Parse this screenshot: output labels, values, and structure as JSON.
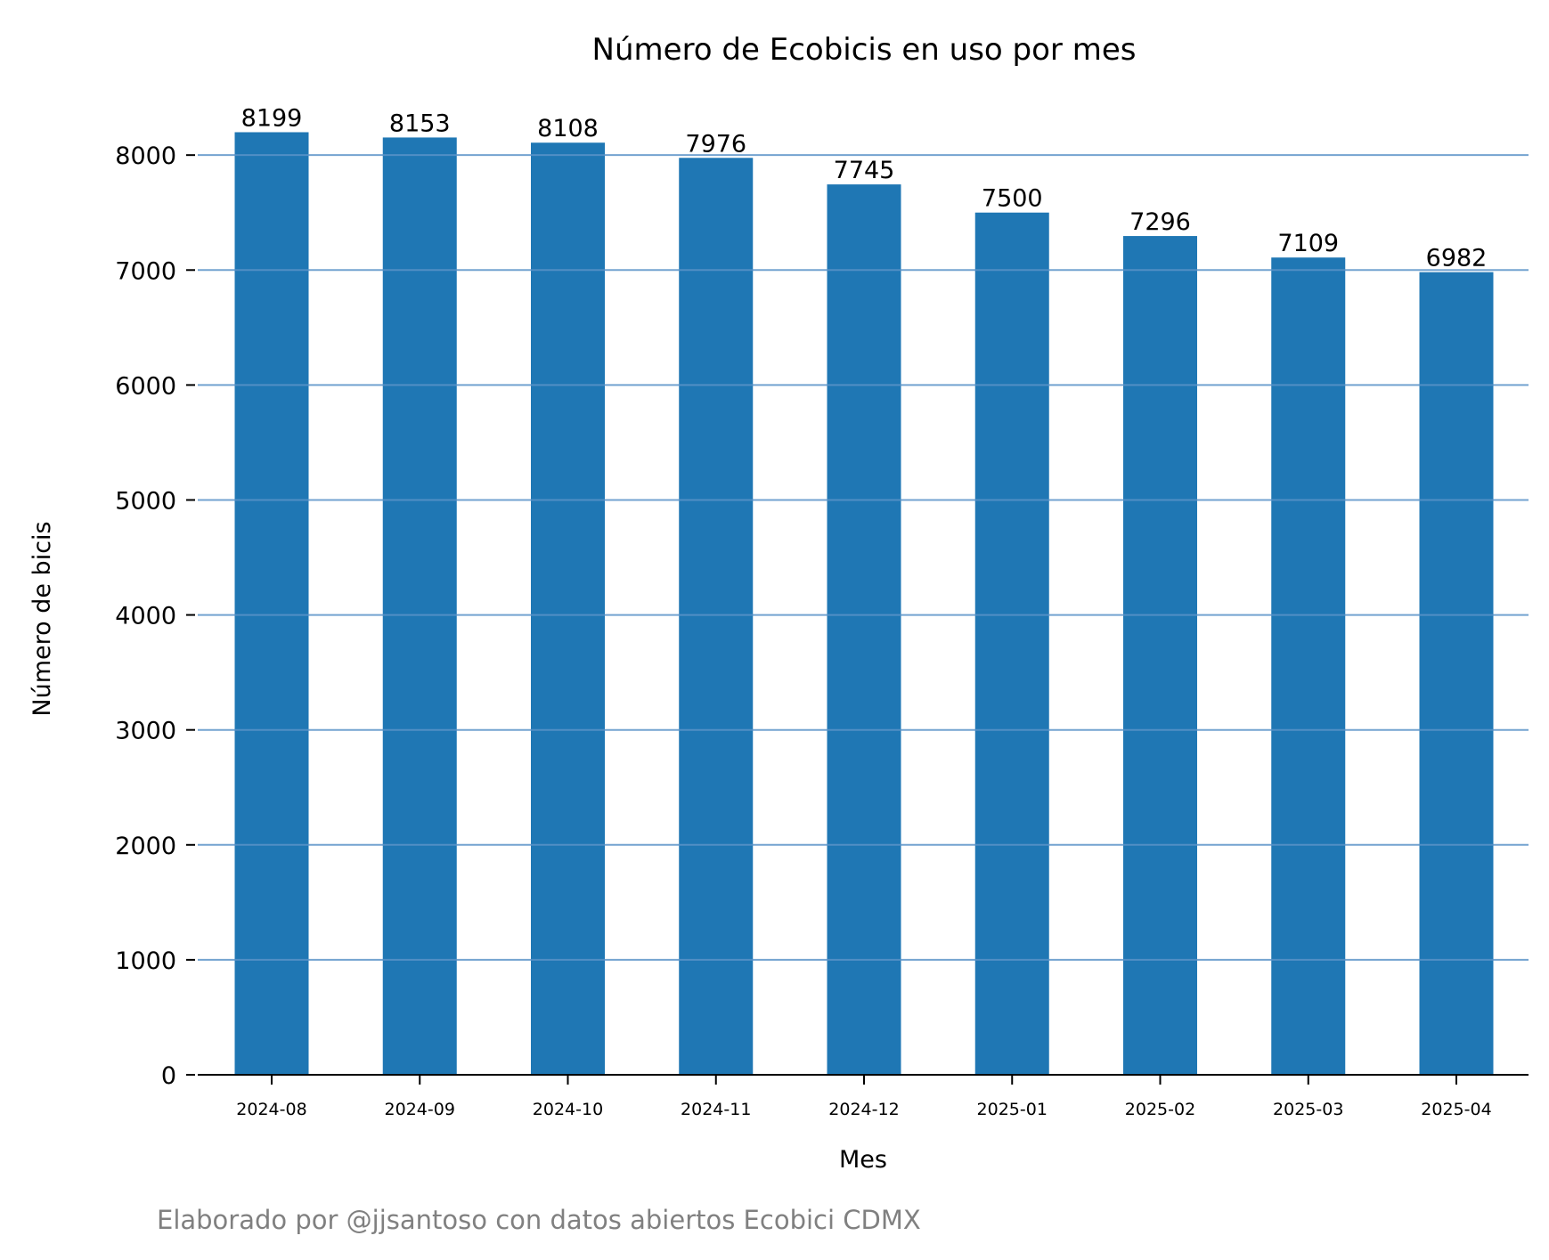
{
  "chart_data": {
    "type": "bar",
    "title": "Número de Ecobicis en uso por mes",
    "xlabel": "Mes",
    "ylabel": "Número de bicis",
    "categories": [
      "2024-08",
      "2024-09",
      "2024-10",
      "2024-11",
      "2024-12",
      "2025-01",
      "2025-02",
      "2025-03",
      "2025-04"
    ],
    "values": [
      8199,
      8153,
      8108,
      7976,
      7745,
      7500,
      7296,
      7109,
      6982
    ],
    "value_labels": [
      "8199",
      "8153",
      "8108",
      "7976",
      "7745",
      "7500",
      "7296",
      "7109",
      "6982"
    ],
    "ylim": [
      0,
      8590
    ],
    "yticks": [
      0,
      1000,
      2000,
      3000,
      4000,
      5000,
      6000,
      7000,
      8000
    ],
    "ytick_labels": [
      "0",
      "1000",
      "2000",
      "3000",
      "4000",
      "5000",
      "6000",
      "7000",
      "8000"
    ],
    "grid": "y",
    "bar_color": "#1f77b4",
    "grid_color": "#5a93c8",
    "footnote": "Elaborado por @jjsantoso con datos abiertos Ecobici CDMX",
    "footnote_color": "#808080"
  }
}
